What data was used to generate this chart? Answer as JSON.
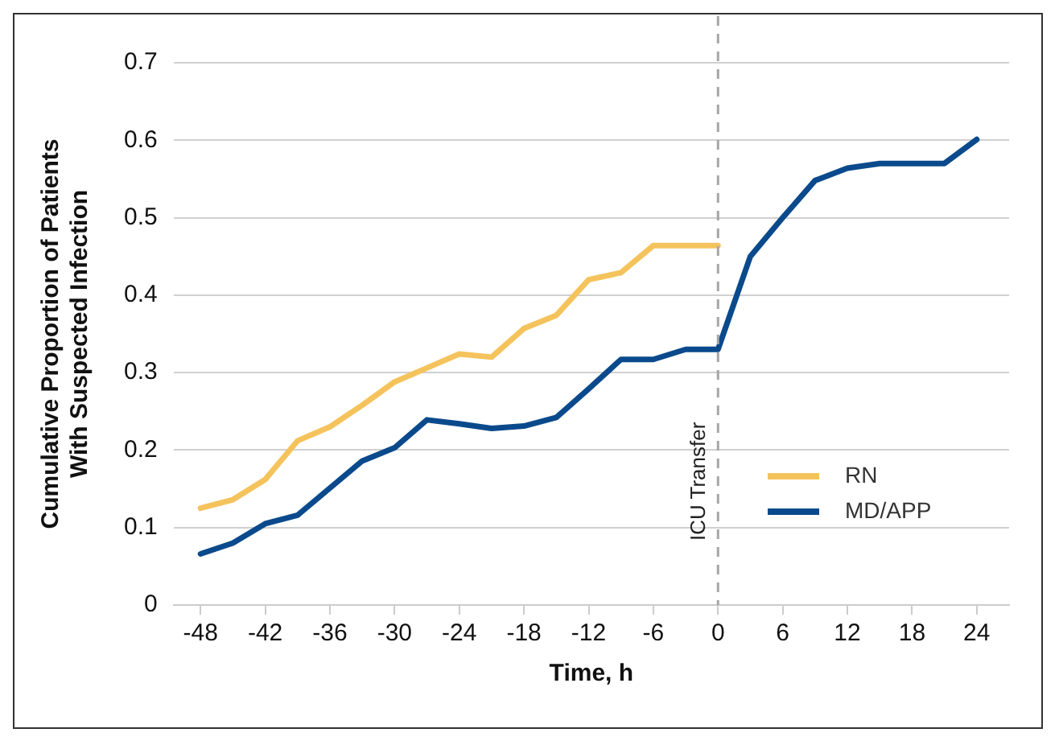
{
  "chart_data": {
    "type": "line",
    "xlabel": "Time, h",
    "ylabel": "Cumulative Proportion of Patients\nWith Suspected Infection",
    "xlim": [
      -50.5,
      27
    ],
    "xticks": [
      -48,
      -42,
      -36,
      -30,
      -24,
      -18,
      -12,
      -6,
      0,
      6,
      12,
      18,
      24
    ],
    "ylim": [
      0,
      0.7
    ],
    "yticks": [
      0,
      0.1,
      0.2,
      0.3,
      0.4,
      0.5,
      0.6,
      0.7
    ],
    "grid": "y",
    "legend": "bottom right",
    "marker": "none",
    "line_style": "solid",
    "ref_lines": [
      {
        "axis": "x",
        "value": 0,
        "label": "ICU Transfer",
        "color": "#a6a6a6",
        "line_style": "dashed"
      }
    ],
    "series": [
      {
        "name": "RN",
        "color": "#f5c35c",
        "x": [
          -48,
          -45,
          -42,
          -39,
          -36,
          -33,
          -30,
          -27,
          -24,
          -21,
          -18,
          -15,
          -12,
          -9,
          -6,
          -3,
          0
        ],
        "values": [
          0.125,
          0.136,
          0.162,
          0.212,
          0.23,
          0.258,
          0.288,
          0.306,
          0.324,
          0.32,
          0.357,
          0.374,
          0.42,
          0.429,
          0.464,
          0.464,
          0.464
        ]
      },
      {
        "name": "MD/APP",
        "color": "#0a4a8c",
        "x": [
          -48,
          -45,
          -42,
          -39,
          -36,
          -33,
          -30,
          -27,
          -24,
          -21,
          -18,
          -15,
          -12,
          -9,
          -6,
          -3,
          0,
          3,
          6,
          9,
          12,
          15,
          18,
          21,
          24
        ],
        "values": [
          0.066,
          0.08,
          0.105,
          0.116,
          0.151,
          0.186,
          0.203,
          0.239,
          0.234,
          0.228,
          0.231,
          0.242,
          0.279,
          0.317,
          0.317,
          0.33,
          0.33,
          0.45,
          0.5,
          0.548,
          0.564,
          0.57,
          0.57,
          0.57,
          0.601
        ]
      }
    ]
  }
}
